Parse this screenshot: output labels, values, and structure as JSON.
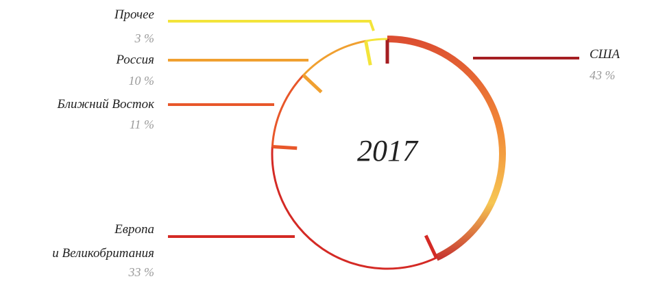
{
  "chart_data": {
    "type": "ring",
    "title": "2017",
    "categories": [
      "США",
      "Европа\nи Великобритания",
      "Ближний Восток",
      "Россия",
      "Прочее"
    ],
    "values": [
      43,
      33,
      11,
      10,
      3
    ],
    "value_labels": [
      "43 %",
      "33 %",
      "11 %",
      "10 %",
      "3 %"
    ],
    "colors": [
      "#a51e22",
      "#d42a25",
      "#e8572a",
      "#f0a030",
      "#f3e43a"
    ]
  }
}
